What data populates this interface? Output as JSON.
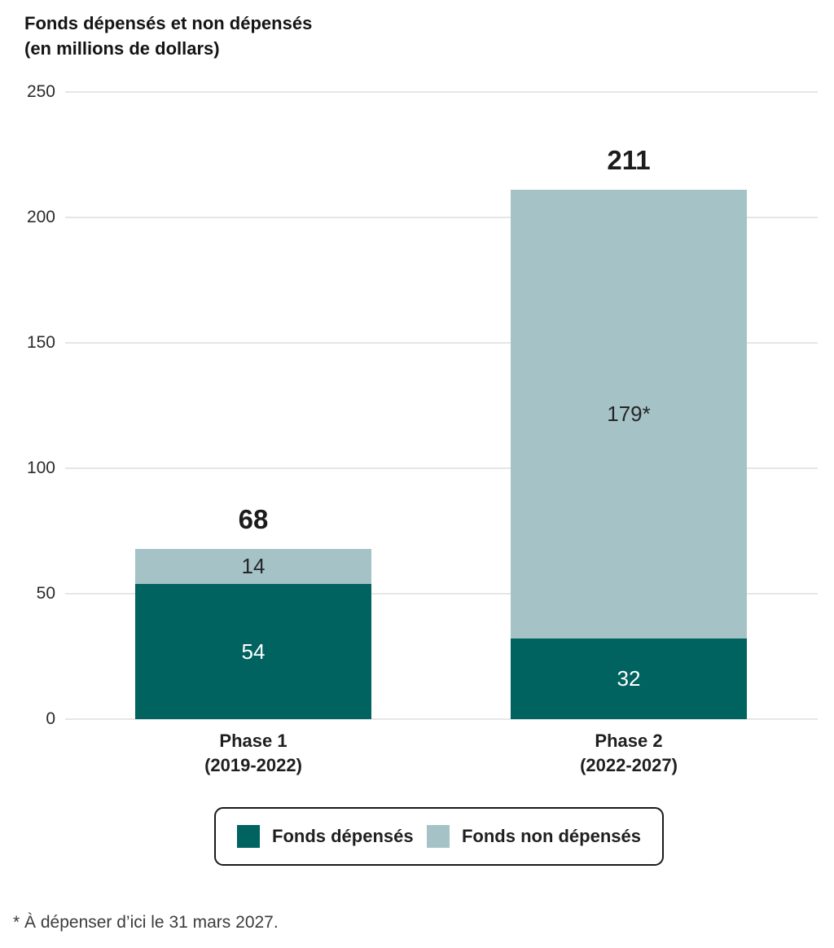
{
  "title": {
    "line1": "Fonds dépensés et non dépensés",
    "line2": "(en millions de dollars)"
  },
  "footnote": "* À dépenser d’ici le 31 mars 2027.",
  "colors": {
    "spent": "#006360",
    "unspent": "#a5c3c7",
    "gridline": "#e6e6e6",
    "total_label": "#1c1c1c",
    "segment_label_on_dark": "#ffffff",
    "segment_label_on_light": "#262626"
  },
  "legend": {
    "items": [
      {
        "label": "Fonds dépensés",
        "color": "#006360"
      },
      {
        "label": "Fonds non dépensés",
        "color": "#a5c3c7"
      }
    ]
  },
  "chart_data": {
    "type": "bar",
    "stacked": true,
    "title": "Fonds dépensés et non dépensés (en millions de dollars)",
    "xlabel": "",
    "ylabel": "",
    "grid": true,
    "legend_position": "bottom",
    "y_axis": {
      "min": 0,
      "max": 250,
      "step": 50,
      "tick_labels": [
        "0",
        "50",
        "100",
        "150",
        "200",
        "250"
      ]
    },
    "categories": [
      {
        "label_line1": "Phase 1",
        "label_line2": "(2019-2022)",
        "total": 68,
        "total_label": "68"
      },
      {
        "label_line1": "Phase 2",
        "label_line2": "(2022-2027)",
        "total": 211,
        "total_label": "211"
      }
    ],
    "series": [
      {
        "name": "Fonds dépensés",
        "color": "#006360",
        "values": [
          54,
          32
        ],
        "value_labels": [
          "54",
          "32"
        ],
        "label_color": "#ffffff"
      },
      {
        "name": "Fonds non dépensés",
        "color": "#a5c3c7",
        "values": [
          14,
          179
        ],
        "value_labels": [
          "14",
          "179*"
        ],
        "label_color": "#262626"
      }
    ]
  }
}
